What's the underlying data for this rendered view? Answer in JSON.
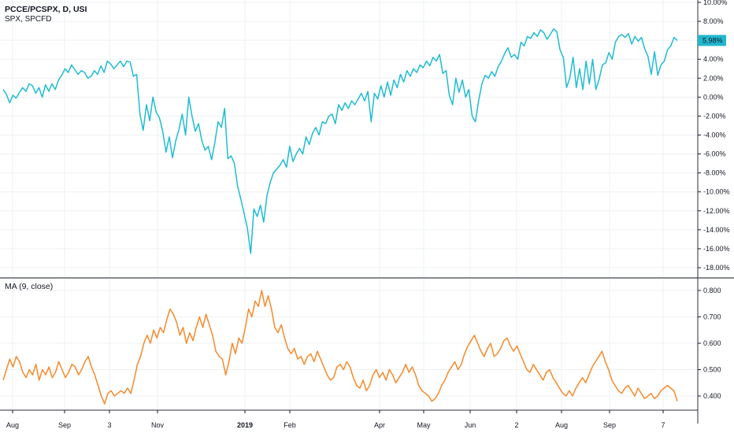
{
  "legend": {
    "symbol_line": "PCCE/PCSPX, D, USI",
    "subtitle": "SPX, SPCFD",
    "indicator": "MA (9, close)"
  },
  "colors": {
    "main_line": "#1fbcd2",
    "ma_line": "#f58a2b",
    "grid": "#eef0f3",
    "divider": "#5d606b",
    "badge_bg": "#21b7cf"
  },
  "chart_data": [
    {
      "type": "line",
      "title": "PCCE/PCSPX, D, USI",
      "subtitle": "SPX, SPCFD",
      "y_unit": "%",
      "ylim": [
        -18.5,
        10.6
      ],
      "y_ticks": [
        10.0,
        8.0,
        6.0,
        4.0,
        2.0,
        0.0,
        -2.0,
        -4.0,
        -6.0,
        -8.0,
        -10.0,
        -12.0,
        -14.0,
        -16.0,
        -18.0
      ],
      "y_tick_labels": [
        "10.00%",
        "8.00%",
        "6.00%",
        "4.00%",
        "2.00%",
        "0.00%",
        "-2.00%",
        "-4.00%",
        "-6.00%",
        "-8.00%",
        "-10.00%",
        "-12.00%",
        "-14.00%",
        "-16.00%",
        "-18.00%"
      ],
      "last_value_label": "5.98%",
      "grid": true,
      "series": [
        {
          "name": "PCCE/PCSPX",
          "y": [
            0.8,
            0.3,
            -0.6,
            0.2,
            -0.1,
            0.5,
            1.0,
            0.6,
            1.4,
            1.2,
            0.4,
            1.0,
            0.0,
            1.3,
            0.6,
            1.4,
            0.8,
            1.8,
            2.3,
            3.0,
            2.6,
            3.4,
            2.9,
            2.4,
            2.8,
            2.6,
            2.0,
            2.2,
            2.8,
            2.4,
            3.3,
            2.6,
            3.8,
            3.5,
            3.0,
            3.4,
            3.8,
            3.2,
            3.8,
            3.7,
            2.2,
            2.4,
            -1.8,
            -3.5,
            -0.8,
            -2.5,
            0.0,
            -1.6,
            -2.2,
            -3.6,
            -5.8,
            -4.2,
            -6.4,
            -4.6,
            -3.4,
            -1.8,
            -4.0,
            0.0,
            -2.0,
            -3.6,
            -2.8,
            -4.6,
            -5.6,
            -5.2,
            -6.6,
            -4.8,
            -2.6,
            -3.2,
            -1.2,
            -6.5,
            -6.2,
            -7.0,
            -9.4,
            -10.8,
            -12.3,
            -13.8,
            -16.5,
            -11.8,
            -12.6,
            -11.4,
            -13.2,
            -10.4,
            -9.0,
            -8.0,
            -7.6,
            -7.2,
            -6.6,
            -7.4,
            -5.2,
            -6.8,
            -6.0,
            -5.4,
            -6.0,
            -4.2,
            -5.0,
            -3.8,
            -3.2,
            -4.0,
            -2.6,
            -2.8,
            -2.0,
            -1.8,
            -2.8,
            -0.8,
            -1.4,
            -0.6,
            -1.2,
            -0.4,
            -0.8,
            -0.2,
            0.4,
            -0.4,
            0.6,
            -2.6,
            0.4,
            -0.2,
            1.2,
            0.0,
            1.6,
            0.2,
            1.8,
            1.0,
            2.4,
            1.6,
            2.8,
            2.2,
            3.0,
            2.6,
            3.4,
            3.1,
            3.8,
            3.3,
            4.2,
            3.8,
            4.5,
            2.5,
            2.8,
            0.2,
            -0.8,
            2.0,
            0.5,
            1.8,
            0.0,
            0.8,
            -2.0,
            -2.6,
            -0.4,
            1.4,
            2.3,
            2.0,
            2.7,
            2.2,
            3.2,
            3.8,
            4.6,
            5.2,
            4.2,
            4.5,
            4.0,
            5.8,
            5.4,
            6.4,
            6.2,
            6.8,
            6.4,
            7.1,
            6.8,
            6.1,
            6.6,
            7.2,
            6.9,
            5.0,
            4.2,
            1.0,
            2.0,
            4.2,
            1.0,
            3.0,
            0.8,
            3.8,
            1.4,
            4.0,
            0.8,
            1.9,
            3.4,
            3.6,
            4.7,
            4.0,
            5.8,
            6.4,
            6.6,
            6.3,
            6.7,
            5.6,
            6.4,
            5.9,
            6.3,
            5.1,
            4.3,
            2.4,
            4.8,
            2.3,
            3.4,
            3.8,
            5.0,
            5.4,
            6.3,
            5.98
          ]
        }
      ]
    },
    {
      "type": "line",
      "title": "MA (9, close)",
      "ylim": [
        0.342,
        0.818
      ],
      "y_ticks": [
        0.8,
        0.7,
        0.6,
        0.5,
        0.4
      ],
      "y_tick_labels": [
        "0.800",
        "0.700",
        "0.600",
        "0.500",
        "0.400"
      ],
      "grid": true,
      "series": [
        {
          "name": "MA (9, close)",
          "y": [
            0.46,
            0.5,
            0.54,
            0.51,
            0.55,
            0.53,
            0.49,
            0.47,
            0.5,
            0.48,
            0.52,
            0.46,
            0.5,
            0.48,
            0.51,
            0.47,
            0.49,
            0.53,
            0.5,
            0.47,
            0.49,
            0.52,
            0.51,
            0.48,
            0.5,
            0.53,
            0.55,
            0.51,
            0.48,
            0.44,
            0.4,
            0.37,
            0.41,
            0.42,
            0.4,
            0.41,
            0.42,
            0.41,
            0.43,
            0.41,
            0.46,
            0.52,
            0.55,
            0.6,
            0.63,
            0.6,
            0.65,
            0.62,
            0.66,
            0.64,
            0.69,
            0.73,
            0.71,
            0.68,
            0.63,
            0.66,
            0.6,
            0.64,
            0.61,
            0.66,
            0.7,
            0.66,
            0.71,
            0.67,
            0.63,
            0.57,
            0.55,
            0.54,
            0.48,
            0.53,
            0.6,
            0.56,
            0.62,
            0.6,
            0.66,
            0.73,
            0.7,
            0.76,
            0.74,
            0.8,
            0.74,
            0.78,
            0.73,
            0.66,
            0.64,
            0.67,
            0.62,
            0.58,
            0.56,
            0.58,
            0.54,
            0.55,
            0.52,
            0.55,
            0.56,
            0.53,
            0.57,
            0.54,
            0.51,
            0.48,
            0.46,
            0.47,
            0.51,
            0.52,
            0.5,
            0.53,
            0.51,
            0.47,
            0.44,
            0.43,
            0.46,
            0.42,
            0.44,
            0.48,
            0.5,
            0.47,
            0.49,
            0.46,
            0.5,
            0.48,
            0.45,
            0.47,
            0.49,
            0.52,
            0.49,
            0.51,
            0.48,
            0.44,
            0.42,
            0.41,
            0.4,
            0.38,
            0.39,
            0.41,
            0.44,
            0.46,
            0.49,
            0.51,
            0.53,
            0.5,
            0.52,
            0.56,
            0.59,
            0.61,
            0.63,
            0.6,
            0.57,
            0.55,
            0.58,
            0.6,
            0.55,
            0.56,
            0.58,
            0.61,
            0.62,
            0.59,
            0.57,
            0.59,
            0.56,
            0.53,
            0.5,
            0.49,
            0.52,
            0.5,
            0.48,
            0.46,
            0.49,
            0.5,
            0.47,
            0.45,
            0.43,
            0.41,
            0.4,
            0.42,
            0.4,
            0.43,
            0.45,
            0.47,
            0.45,
            0.48,
            0.51,
            0.53,
            0.55,
            0.57,
            0.53,
            0.5,
            0.46,
            0.44,
            0.42,
            0.41,
            0.43,
            0.44,
            0.42,
            0.4,
            0.43,
            0.41,
            0.39,
            0.4,
            0.41,
            0.39,
            0.4,
            0.42,
            0.43,
            0.44,
            0.43,
            0.42,
            0.38
          ]
        }
      ]
    }
  ],
  "x_axis": {
    "tick_labels": [
      "Aug",
      "Sep",
      "3",
      "Nov",
      "2019",
      "Feb",
      "Apr",
      "May",
      "Jun",
      "2",
      "Aug",
      "Sep",
      "7"
    ],
    "bold_index": 4
  }
}
